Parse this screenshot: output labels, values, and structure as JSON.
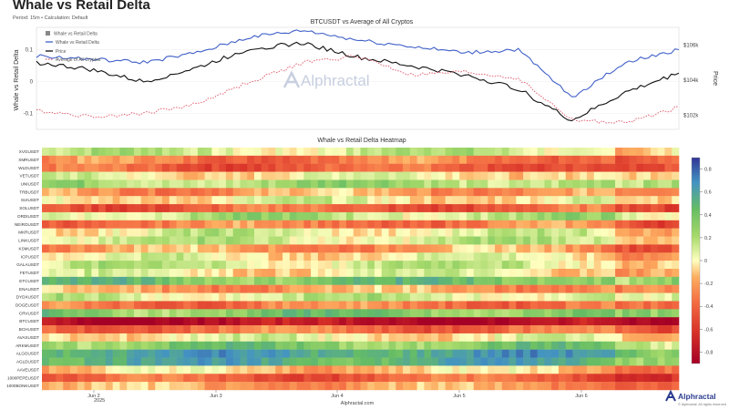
{
  "header": {
    "title": "Whale vs Retail Delta",
    "subtitle": "Period: 15m • Calculation: Default"
  },
  "footer": {
    "source": "Alphractal.com",
    "brand": "Alphractal",
    "rights": "© Alphractal. All rights reserved"
  },
  "watermark": "Alphractal",
  "colors": {
    "whale_line": "#4060c8",
    "price_line": "#111111",
    "avg_line": "#e06070",
    "heat_low": "#a50026",
    "heat_mid": "#ffffbf",
    "heat_high": "#313695"
  },
  "chart_data": [
    {
      "type": "line",
      "title": "BTCUSDT vs Average of All Cryptos",
      "ylabel": "Whale vs Retail Delta",
      "y2label": "Price",
      "ylim": [
        -0.15,
        0.17
      ],
      "yticks": [
        "0.1",
        "0",
        "-0.1"
      ],
      "y2lim": [
        101200,
        107000
      ],
      "y2ticks": [
        "$106k",
        "$104k",
        "$102k"
      ],
      "x": [
        "Jun 1 12:00",
        "Jun 2 00:00",
        "Jun 2 12:00",
        "Jun 3 00:00",
        "Jun 3 12:00",
        "Jun 4 00:00",
        "Jun 4 12:00",
        "Jun 5 00:00",
        "Jun 5 12:00",
        "Jun 6 00:00",
        "Jun 6 06:00",
        "Jun 6 12:00",
        "Jun 7 00:00"
      ],
      "xticks": [
        "Jun 2",
        "Jun 3",
        "Jun 4",
        "Jun 5",
        "Jun 6"
      ],
      "year_label": "2025",
      "legend": [
        "Whale vs Retail Delta",
        "Price",
        "Average of All Cryptos"
      ],
      "legend_placement": "top-left",
      "series": [
        {
          "name": "Whale vs Retail Delta",
          "axis": "left",
          "values": [
            0.08,
            0.07,
            0.06,
            0.09,
            0.14,
            0.16,
            0.13,
            0.11,
            0.09,
            0.1,
            -0.05,
            0.06,
            0.1
          ]
        },
        {
          "name": "Price",
          "axis": "right",
          "values": [
            105000,
            104600,
            103900,
            104700,
            105800,
            106100,
            105300,
            104800,
            104300,
            103500,
            101700,
            103300,
            104400
          ]
        },
        {
          "name": "Average of All Cryptos",
          "axis": "left",
          "values": [
            -0.09,
            -0.11,
            -0.1,
            -0.07,
            0.0,
            0.06,
            0.08,
            0.02,
            0.03,
            0.01,
            -0.12,
            -0.13,
            -0.08
          ]
        }
      ]
    },
    {
      "type": "heatmap",
      "title": "Whale vs Retail Delta Heatmap",
      "colorbar_ticks": [
        "0.8",
        "0.6",
        "0.4",
        "0.2",
        "0",
        "-0.2",
        "-0.4",
        "-0.6",
        "-0.8"
      ],
      "colorbar_range": [
        -0.9,
        0.9
      ],
      "xticks": [
        "Jun 2",
        "Jun 3",
        "Jun 4",
        "Jun 5",
        "Jun 6"
      ],
      "year_label": "2025",
      "rows": [
        "XVGUSDT",
        "XMRUSDT",
        "WLDUSDT",
        "VETUSDT",
        "UNIUSDT",
        "TRBUSDT",
        "SUIUSDT",
        "SOLUSDT",
        "ORDIUSDT",
        "NEIROUSDT",
        "MKRUSDT",
        "LINKUSDT",
        "KSMUSDT",
        "ICPUSDT",
        "GALAUSDT",
        "FETUSDT",
        "ETCUSDT",
        "ENAUSDT",
        "DYDXUSDT",
        "DOGEUSDT",
        "CRVUSDT",
        "BTCUSDT",
        "BCHUSDT",
        "AVAXUSDT",
        "ARKMUSDT",
        "ALGOUSDT",
        "AGLDUSDT",
        "AAVEUSDT",
        "1000PEPEUSDT",
        "1000BONKUSDT"
      ],
      "row_means": [
        0.1,
        -0.3,
        -0.4,
        0.0,
        0.2,
        -0.2,
        0.0,
        -0.4,
        0.15,
        -0.3,
        0.05,
        0.1,
        -0.2,
        0.0,
        0.1,
        0.0,
        0.35,
        -0.2,
        0.1,
        -0.3,
        0.3,
        -0.8,
        -0.35,
        0.0,
        0.3,
        0.55,
        0.5,
        -0.1,
        -0.4,
        -0.2
      ]
    }
  ]
}
